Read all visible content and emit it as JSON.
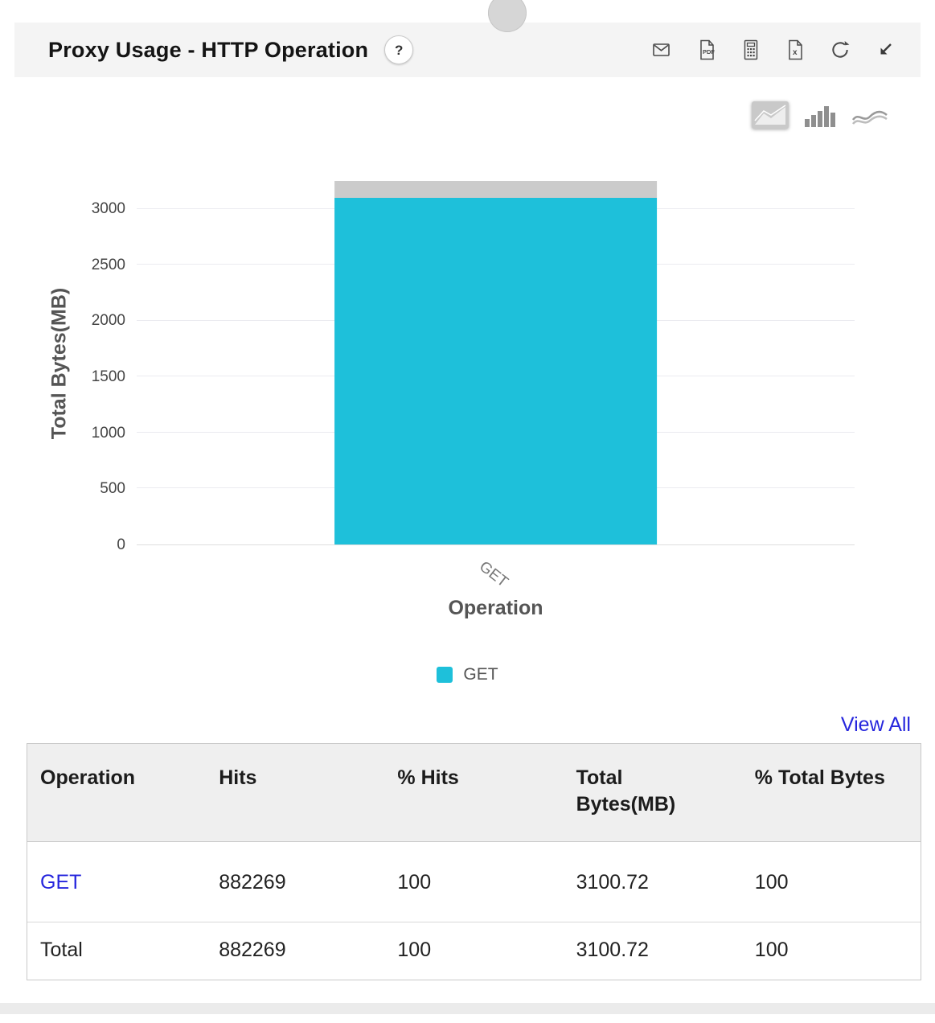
{
  "header": {
    "title": "Proxy Usage - HTTP Operation",
    "help_label": "?",
    "icons": [
      "email-icon",
      "pdf-icon",
      "csv-icon",
      "excel-icon",
      "refresh-icon",
      "expand-icon"
    ]
  },
  "chart_toolbar": {
    "icons": [
      "area-chart-icon",
      "bar-chart-icon",
      "line-chart-icon"
    ],
    "selected": "bar-chart-icon"
  },
  "chart_data": {
    "type": "bar",
    "title": "Proxy Usage - HTTP Operation",
    "categories": [
      "GET"
    ],
    "values": [
      3100.72
    ],
    "xlabel": "Operation",
    "ylabel": "Total Bytes(MB)",
    "ylim": [
      0,
      3250
    ],
    "yticks": [
      0,
      500,
      1000,
      1500,
      2000,
      2500,
      3000
    ],
    "grid": true,
    "legend_position": "bottom",
    "bar_color": "#1ec0da",
    "bar_cap_color": "#cbcbcb",
    "legend": [
      {
        "label": "GET",
        "color": "#1ec0da"
      }
    ]
  },
  "view_all": "View All",
  "table": {
    "columns": [
      "Operation",
      "Hits",
      "% Hits",
      "Total Bytes(MB)",
      "% Total Bytes"
    ],
    "rows": [
      {
        "operation": "GET",
        "hits": "882269",
        "pct_hits": "100",
        "total_bytes": "3100.72",
        "pct_total_bytes": "100",
        "link": true
      },
      {
        "operation": "Total",
        "hits": "882269",
        "pct_hits": "100",
        "total_bytes": "3100.72",
        "pct_total_bytes": "100",
        "link": false
      }
    ]
  },
  "colors": {
    "link": "#2626dd",
    "bar": "#1ec0da",
    "bar_cap": "#cbcbcb",
    "panel_header_bg": "#f4f4f4",
    "table_header_bg": "#efefef"
  }
}
